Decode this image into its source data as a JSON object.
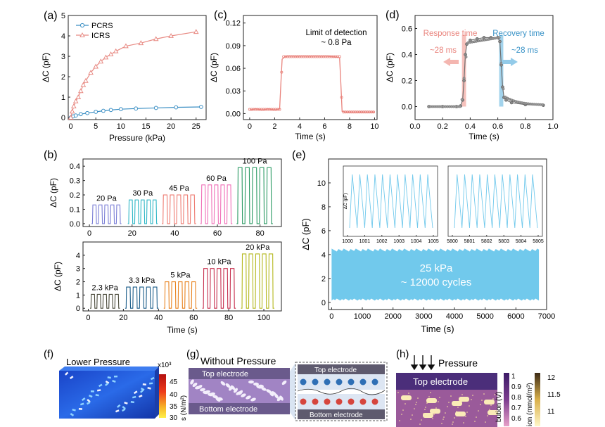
{
  "panel_labels": {
    "a": "(a)",
    "b": "(b)",
    "c": "(c)",
    "d": "(d)",
    "e": "(e)",
    "f": "(f)",
    "g": "(g)",
    "h": "(h)"
  },
  "colors": {
    "pcrs": "#3b8fc4",
    "icrs": "#e88b84",
    "red": "#e9837c",
    "grey": "#6f6f6f",
    "cyan": "#71c9ec",
    "resp_fill": "#f4b6b0",
    "rec_fill": "#93cbe9"
  },
  "chart_data": [
    {
      "id": "a",
      "type": "line",
      "xlabel": "Pressure (kPa)",
      "ylabel": "ΔC (pF)",
      "xlim": [
        -0.5,
        27
      ],
      "ylim": [
        -0.1,
        5
      ],
      "xticks": [
        0,
        5,
        10,
        15,
        20,
        25
      ],
      "yticks": [
        0,
        1,
        2,
        3,
        4,
        5
      ],
      "legend": "top-left",
      "series": [
        {
          "name": "PCRS",
          "marker": "circle",
          "x": [
            0,
            0.5,
            1,
            2,
            3.3,
            5,
            6.5,
            8,
            10,
            13,
            17,
            21,
            26
          ],
          "y": [
            0,
            0.06,
            0.1,
            0.17,
            0.22,
            0.28,
            0.33,
            0.37,
            0.41,
            0.44,
            0.47,
            0.5,
            0.52
          ]
        },
        {
          "name": "ICRS",
          "marker": "triangle",
          "x": [
            0,
            0.3,
            0.6,
            1,
            1.5,
            2,
            2.5,
            3,
            4,
            5,
            6,
            7,
            8,
            9,
            11,
            14,
            17,
            20,
            25
          ],
          "y": [
            0,
            0.3,
            0.55,
            0.8,
            1.0,
            1.3,
            1.6,
            1.8,
            2.2,
            2.5,
            2.75,
            2.95,
            3.1,
            3.25,
            3.5,
            3.65,
            3.85,
            4.0,
            4.2
          ]
        }
      ]
    },
    {
      "id": "c",
      "type": "line",
      "xlabel": "Time (s)",
      "ylabel": "ΔC (pF)",
      "xlim": [
        -0.5,
        10.2
      ],
      "ylim": [
        -0.008,
        0.13
      ],
      "xticks": [
        0,
        2,
        4,
        6,
        8,
        10
      ],
      "yticks": [
        0.0,
        0.03,
        0.06,
        0.09,
        0.12
      ],
      "ytick_labels": [
        "0.00",
        "0.03",
        "0.06",
        "0.09",
        "0.12"
      ],
      "annotation": [
        "Limit of detection",
        "~ 0.8 Pa"
      ],
      "x": [
        0,
        0.5,
        1,
        1.5,
        2,
        2.4,
        2.5,
        2.6,
        2.8,
        3,
        4,
        5,
        6,
        7,
        7.2,
        7.3,
        7.4,
        7.6,
        8,
        8.5,
        9,
        9.5,
        10
      ],
      "y": [
        0.005,
        0.006,
        0.005,
        0.006,
        0.005,
        0.006,
        0.04,
        0.072,
        0.075,
        0.076,
        0.076,
        0.076,
        0.076,
        0.075,
        0.074,
        0.04,
        0.003,
        0.002,
        0.002,
        0.002,
        0.002,
        0.002,
        0.002
      ]
    },
    {
      "id": "d",
      "type": "line",
      "xlabel": "Time (s)",
      "ylabel": "ΔC (pF)",
      "xlim": [
        0,
        1.0
      ],
      "ylim": [
        -0.1,
        0.7
      ],
      "xticks": [
        0.0,
        0.2,
        0.4,
        0.6,
        0.8,
        1.0
      ],
      "xtick_labels": [
        "0.0",
        "0.2",
        "0.4",
        "0.6",
        "0.8",
        "1.0"
      ],
      "yticks": [
        0.0,
        0.2,
        0.4,
        0.6
      ],
      "ytick_labels": [
        "0.0",
        "0.2",
        "0.4",
        "0.6"
      ],
      "response_label": "Response time",
      "response_value": "~28 ms",
      "recovery_label": "Recovery time",
      "recovery_value": "~28 ms",
      "response_span": [
        0.34,
        0.37
      ],
      "recovery_span": [
        0.61,
        0.64
      ],
      "x": [
        0.1,
        0.2,
        0.3,
        0.33,
        0.345,
        0.355,
        0.365,
        0.375,
        0.4,
        0.45,
        0.5,
        0.55,
        0.6,
        0.615,
        0.625,
        0.635,
        0.645,
        0.66,
        0.7,
        0.8,
        0.93
      ],
      "y": [
        0,
        0,
        0,
        0.005,
        0.05,
        0.2,
        0.4,
        0.48,
        0.51,
        0.52,
        0.53,
        0.53,
        0.53,
        0.5,
        0.32,
        0.15,
        0.07,
        0.05,
        0.03,
        0.015,
        0.01
      ]
    },
    {
      "id": "b_top",
      "type": "line",
      "ylabel": "ΔC (pF)",
      "xlim": [
        -3,
        90
      ],
      "ylim": [
        -0.02,
        0.45
      ],
      "xticks": [
        0,
        20,
        40,
        60,
        80
      ],
      "yticks": [
        0.0,
        0.1,
        0.2,
        0.3,
        0.4
      ],
      "ytick_labels": [
        "0.0",
        "0.1",
        "0.2",
        "0.3",
        "0.4"
      ],
      "segments": [
        {
          "label": "20 Pa",
          "start": 1,
          "end": 15,
          "amp": 0.13,
          "pulses": 5,
          "color": "#7b7fd6"
        },
        {
          "label": "30 Pa",
          "start": 18,
          "end": 32,
          "amp": 0.165,
          "pulses": 5,
          "color": "#2fb7c6"
        },
        {
          "label": "45 Pa",
          "start": 34,
          "end": 50,
          "amp": 0.2,
          "pulses": 5,
          "color": "#ee7b71"
        },
        {
          "label": "60 Pa",
          "start": 52,
          "end": 67,
          "amp": 0.27,
          "pulses": 5,
          "color": "#f070b8"
        },
        {
          "label": "100 Pa",
          "start": 69,
          "end": 86,
          "amp": 0.39,
          "pulses": 5,
          "color": "#2a9a63"
        }
      ]
    },
    {
      "id": "b_bottom",
      "type": "line",
      "xlabel": "Time (s)",
      "ylabel": "ΔC (pF)",
      "xlim": [
        -3,
        110
      ],
      "ylim": [
        -0.2,
        5.0
      ],
      "xticks": [
        0,
        20,
        40,
        60,
        80,
        100
      ],
      "yticks": [
        0,
        1,
        2,
        3,
        4
      ],
      "segments": [
        {
          "label": "2.3 kPa",
          "start": 1,
          "end": 18,
          "amp": 1.05,
          "pulses": 5,
          "color": "#4a4a3a"
        },
        {
          "label": "3.3 kPa",
          "start": 21,
          "end": 40,
          "amp": 1.6,
          "pulses": 5,
          "color": "#1b5d8a"
        },
        {
          "label": "5 kPa",
          "start": 43,
          "end": 62,
          "amp": 2.0,
          "pulses": 5,
          "color": "#e8821e"
        },
        {
          "label": "10 kPa",
          "start": 65,
          "end": 84,
          "amp": 3.0,
          "pulses": 5,
          "color": "#c7304f"
        },
        {
          "label": "20 kPa",
          "start": 87,
          "end": 106,
          "amp": 4.1,
          "pulses": 5,
          "color": "#b5b81e"
        }
      ]
    },
    {
      "id": "e",
      "type": "area",
      "xlabel": "Time (s)",
      "ylabel": "ΔC (pF)",
      "xlim": [
        -100,
        7000
      ],
      "ylim": [
        -0.6,
        12
      ],
      "xticks": [
        0,
        1000,
        2000,
        3000,
        4000,
        5000,
        6000,
        7000
      ],
      "yticks": [
        0,
        2,
        4,
        6,
        8,
        10
      ],
      "band": {
        "x": [
          0,
          6750
        ],
        "ymin": 0.15,
        "ymax": 4.5
      },
      "text_lines": [
        "25 kPa",
        "~ 12000 cycles"
      ],
      "insets": [
        {
          "xlim": [
            1000,
            1005
          ],
          "xticks": [
            1000,
            1001,
            1002,
            1003,
            1004,
            1005
          ],
          "ylabel": "ΔC (pF)",
          "cycles": 11
        },
        {
          "xlim": [
            5800,
            5805
          ],
          "xticks": [
            5800,
            5801,
            5802,
            5803,
            5804,
            5805
          ],
          "cycles": 11
        }
      ]
    }
  ],
  "f": {
    "title": "Lower Pressure",
    "colorbar_exp": "x10³",
    "colorbar_ticks": [
      "45",
      "40",
      "35",
      "30"
    ],
    "colorbar_label": "s (N/m²)"
  },
  "g": {
    "title": "Without Pressure",
    "top": "Top electrode",
    "bottom": "Bottom electrode",
    "zoom_top": "Top electrode",
    "zoom_bottom": "Bottom electrode"
  },
  "h": {
    "title": "Pressure",
    "top": "Top electrode",
    "cb1_ticks": [
      "1",
      "0.9",
      "0.8",
      "0.7",
      "0.6"
    ],
    "cb1_label": "bution (V)",
    "cb2_ticks": [
      "12",
      "11.5",
      "11"
    ],
    "cb2_label": "ion (mmol/m³)"
  }
}
